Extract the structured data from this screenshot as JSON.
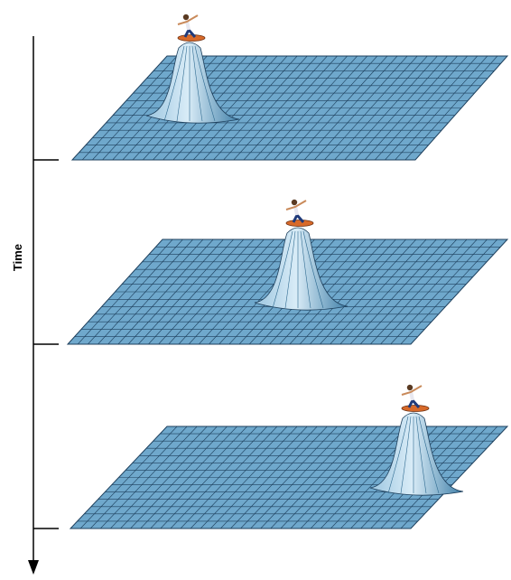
{
  "axis": {
    "label": "Time"
  }
}
